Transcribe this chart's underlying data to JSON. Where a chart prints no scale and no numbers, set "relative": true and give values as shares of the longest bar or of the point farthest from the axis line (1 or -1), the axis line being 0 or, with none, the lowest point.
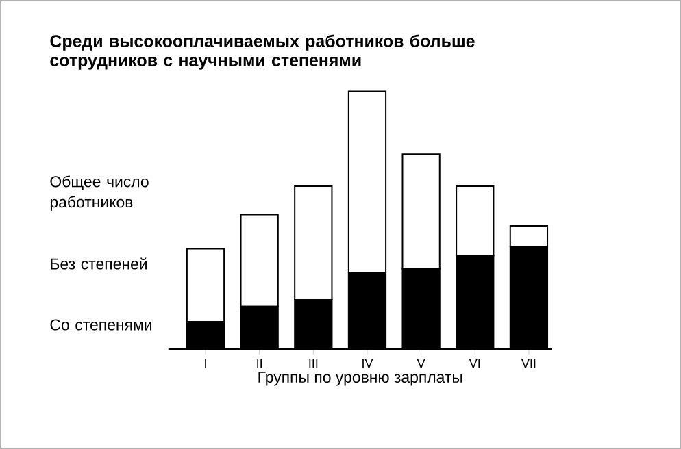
{
  "chart_data": {
    "type": "bar",
    "title": "Среди высокооплачиваемых работников больше сотрудников с научными степенями",
    "categories": [
      "I",
      "II",
      "III",
      "IV",
      "V",
      "VI",
      "VII"
    ],
    "xlabel": "Группы по уровню зарплаты",
    "relative": true,
    "stacked": true,
    "legend": "left",
    "annotations": [
      "Общее число работников"
    ],
    "series": [
      {
        "name": "Со степенями",
        "color": "#000000",
        "values": [
          0.106,
          0.165,
          0.191,
          0.297,
          0.312,
          0.363,
          0.398
        ]
      },
      {
        "name": "Без степеней",
        "color": "#ffffff",
        "values": [
          0.283,
          0.357,
          0.441,
          0.703,
          0.444,
          0.269,
          0.08
        ]
      }
    ]
  }
}
